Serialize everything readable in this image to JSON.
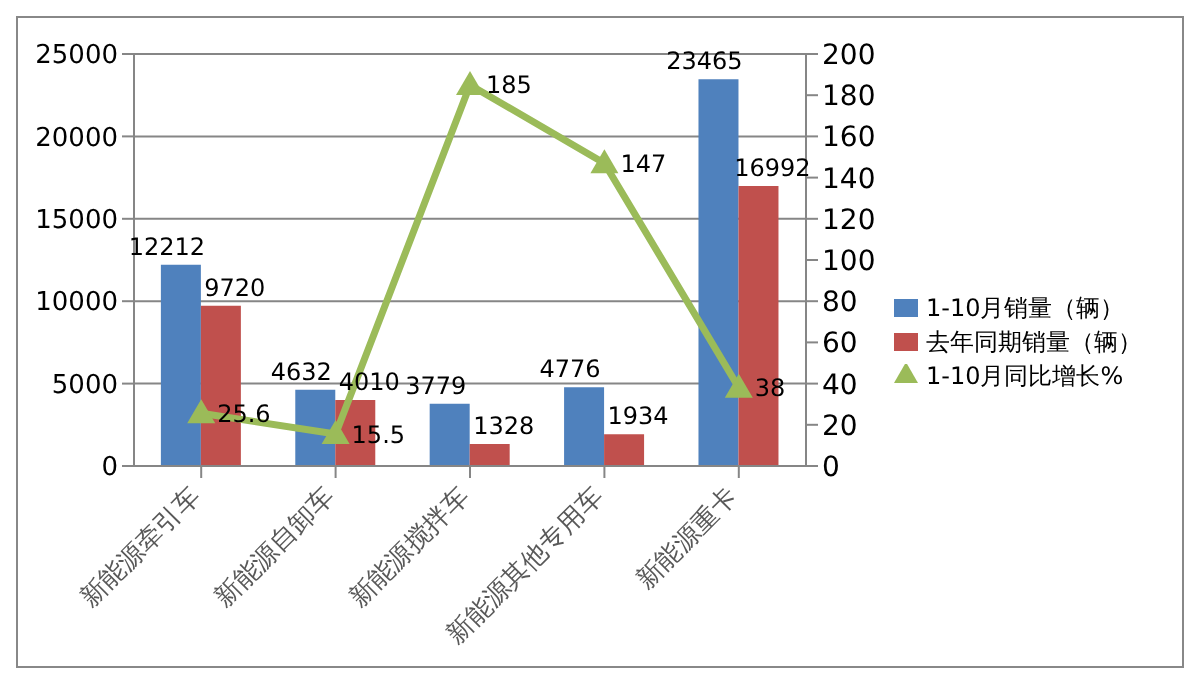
{
  "chart_data": {
    "type": "bar",
    "categories": [
      "新能源牵引车",
      "新能源自卸车",
      "新能源搅拌车",
      "新能源其他专用车",
      "新能源重卡"
    ],
    "series": [
      {
        "name": "1-10月销量（辆）",
        "color": "#4f81bd",
        "values": [
          12212,
          4632,
          3779,
          4776,
          23465
        ]
      },
      {
        "name": "去年同期销量（辆）",
        "color": "#c0504d",
        "values": [
          9720,
          4010,
          1328,
          1934,
          16992
        ]
      },
      {
        "name": "1-10月同比增长%",
        "type": "line",
        "axis": "y2",
        "color": "#9bbb59",
        "values": [
          25.6,
          15.5,
          185,
          147,
          38
        ],
        "marker": "triangle"
      }
    ],
    "ylim": [
      0,
      25000
    ],
    "yticks": [
      0,
      5000,
      10000,
      15000,
      20000,
      25000
    ],
    "y2lim": [
      0,
      200
    ],
    "y2ticks": [
      0,
      20,
      40,
      60,
      80,
      100,
      120,
      140,
      160,
      180,
      200
    ],
    "grid": "y",
    "legend": "right",
    "data_labels": true
  }
}
